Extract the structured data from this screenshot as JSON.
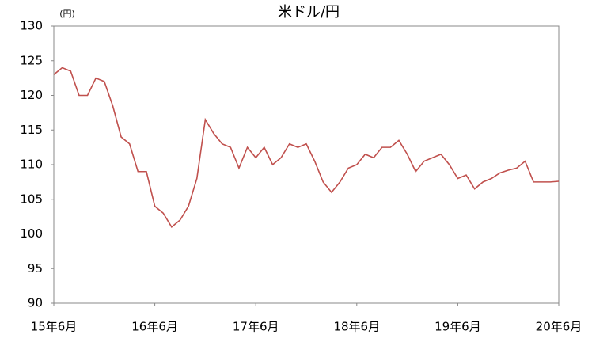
{
  "chart_data": {
    "type": "line",
    "title": "米ドル/円",
    "y_unit": "(円)",
    "x": [
      "2015-06",
      "2015-07",
      "2015-08",
      "2015-09",
      "2015-10",
      "2015-11",
      "2015-12",
      "2016-01",
      "2016-02",
      "2016-03",
      "2016-04",
      "2016-05",
      "2016-06",
      "2016-07",
      "2016-08",
      "2016-09",
      "2016-10",
      "2016-11",
      "2016-12",
      "2017-01",
      "2017-02",
      "2017-03",
      "2017-04",
      "2017-05",
      "2017-06",
      "2017-07",
      "2017-08",
      "2017-09",
      "2017-10",
      "2017-11",
      "2017-12",
      "2018-01",
      "2018-02",
      "2018-03",
      "2018-04",
      "2018-05",
      "2018-06",
      "2018-07",
      "2018-08",
      "2018-09",
      "2018-10",
      "2018-11",
      "2018-12",
      "2019-01",
      "2019-02",
      "2019-03",
      "2019-04",
      "2019-05",
      "2019-06",
      "2019-07",
      "2019-08",
      "2019-09",
      "2019-10",
      "2019-11",
      "2019-12",
      "2020-01",
      "2020-02",
      "2020-03",
      "2020-04",
      "2020-05",
      "2020-06"
    ],
    "series": [
      {
        "name": "米ドル/円",
        "color": "#c0504d",
        "values": [
          123,
          124,
          123.5,
          120,
          120,
          122.5,
          122,
          118.5,
          114,
          113,
          109,
          109,
          104,
          103,
          101,
          102,
          104,
          108,
          116.5,
          114.5,
          113,
          112.5,
          109.5,
          112.5,
          111,
          112.5,
          110,
          111,
          113,
          112.5,
          113,
          110.5,
          107.5,
          106,
          107.5,
          109.5,
          110,
          111.5,
          111,
          112.5,
          112.5,
          113.5,
          111.5,
          109,
          110.5,
          111,
          111.5,
          110,
          108,
          108.5,
          106.5,
          107.5,
          108,
          108.8,
          109.2,
          109.5,
          110.5,
          107.5,
          107.5,
          107.5,
          107.6
        ]
      }
    ],
    "ylim": [
      90,
      130
    ],
    "yticks": [
      90,
      95,
      100,
      105,
      110,
      115,
      120,
      125,
      130
    ],
    "xticks": [
      {
        "value": "2015-06",
        "label": "15年6月"
      },
      {
        "value": "2016-06",
        "label": "16年6月"
      },
      {
        "value": "2017-06",
        "label": "17年6月"
      },
      {
        "value": "2018-06",
        "label": "18年6月"
      },
      {
        "value": "2019-06",
        "label": "19年6月"
      },
      {
        "value": "2020-06",
        "label": "20年6月"
      }
    ]
  }
}
